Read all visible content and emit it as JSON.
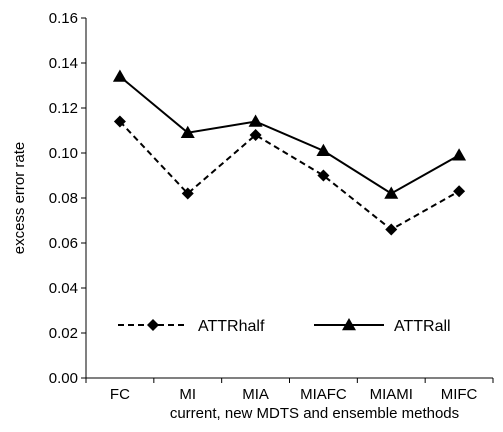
{
  "chart_data": {
    "type": "line",
    "categories": [
      "FC",
      "MI",
      "MIA",
      "MIAFC",
      "MIAMI",
      "MIFC"
    ],
    "xlabel": "current, new MDTS and ensemble methods",
    "ylabel": "excess error rate",
    "ylim": [
      0,
      0.16
    ],
    "yticks": [
      "0.00",
      "0.02",
      "0.04",
      "0.06",
      "0.08",
      "0.10",
      "0.12",
      "0.14",
      "0.16"
    ],
    "grid": false,
    "legend_position": "bottom",
    "series": [
      {
        "name": "ATTRhalf",
        "values": [
          0.114,
          0.082,
          0.108,
          0.09,
          0.066,
          0.083
        ],
        "line_style": "dashed",
        "marker": "diamond",
        "color": "#000000"
      },
      {
        "name": "ATTRall",
        "values": [
          0.134,
          0.109,
          0.114,
          0.101,
          0.082,
          0.099
        ],
        "line_style": "solid",
        "marker": "triangle",
        "color": "#000000"
      }
    ]
  }
}
